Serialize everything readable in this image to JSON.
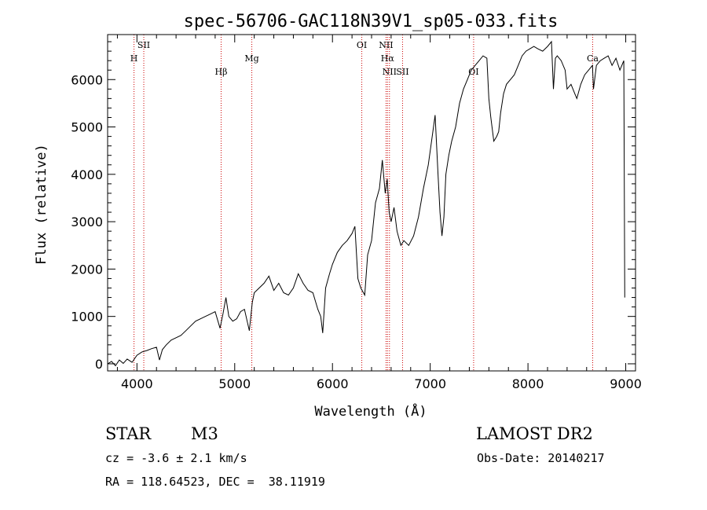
{
  "chart_data": {
    "type": "line",
    "title": "spec-56706-GAC118N39V1_sp05-033.fits",
    "xlabel": "Wavelength (Å)",
    "ylabel": "Flux (relative)",
    "xlim": [
      3700,
      9100
    ],
    "ylim": [
      -150,
      6950
    ],
    "xticks": [
      4000,
      5000,
      6000,
      7000,
      8000,
      9000
    ],
    "yticks": [
      0,
      1000,
      2000,
      3000,
      4000,
      5000,
      6000
    ],
    "grid": false,
    "line_color": "#000000",
    "marker_color": "#cc0000",
    "spectral_lines": [
      {
        "label": "H",
        "wavelength": 3970,
        "row": 2
      },
      {
        "label": "SII",
        "wavelength": 4070,
        "row": 1
      },
      {
        "label": "Hβ",
        "wavelength": 4861,
        "row": 3
      },
      {
        "label": "Mg",
        "wavelength": 5175,
        "row": 2
      },
      {
        "label": "OI",
        "wavelength": 6300,
        "row": 1
      },
      {
        "label": "NII",
        "wavelength": 6548,
        "row": 1
      },
      {
        "label": "Hα",
        "wavelength": 6563,
        "row": 2
      },
      {
        "label": "NII",
        "wavelength": 6583,
        "row": 3
      },
      {
        "label": "SII",
        "wavelength": 6717,
        "row": 3
      },
      {
        "label": "OI",
        "wavelength": 7444,
        "row": 3
      },
      {
        "label": "Ca",
        "wavelength": 8662,
        "row": 2
      }
    ],
    "series": [
      {
        "x": [
          3700,
          3740,
          3780,
          3820,
          3860,
          3900,
          3950,
          4000,
          4050,
          4100,
          4150,
          4200,
          4230,
          4260,
          4300,
          4350,
          4400,
          4450,
          4500,
          4550,
          4600,
          4650,
          4700,
          4750,
          4800,
          4850,
          4880,
          4910,
          4940,
          4980,
          5020,
          5060,
          5100,
          5150,
          5180,
          5200,
          5250,
          5300,
          5350,
          5400,
          5450,
          5500,
          5550,
          5600,
          5650,
          5700,
          5750,
          5800,
          5850,
          5880,
          5900,
          5930,
          5970,
          6000,
          6050,
          6100,
          6150,
          6200,
          6230,
          6260,
          6290,
          6330,
          6360,
          6400,
          6440,
          6480,
          6510,
          6540,
          6560,
          6580,
          6600,
          6630,
          6660,
          6700,
          6730,
          6780,
          6830,
          6880,
          6930,
          6980,
          7020,
          7050,
          7080,
          7100,
          7120,
          7140,
          7160,
          7190,
          7220,
          7260,
          7300,
          7340,
          7380,
          7420,
          7460,
          7500,
          7540,
          7580,
          7600,
          7620,
          7650,
          7680,
          7700,
          7720,
          7750,
          7780,
          7820,
          7860,
          7900,
          7940,
          7980,
          8020,
          8060,
          8100,
          8150,
          8200,
          8240,
          8260,
          8280,
          8300,
          8340,
          8380,
          8400,
          8440,
          8480,
          8500,
          8540,
          8580,
          8620,
          8660,
          8670,
          8700,
          8740,
          8780,
          8820,
          8860,
          8900,
          8940,
          8980,
          8990
        ],
        "y": [
          0,
          50,
          -40,
          80,
          10,
          100,
          30,
          180,
          250,
          280,
          320,
          350,
          80,
          300,
          400,
          500,
          550,
          600,
          700,
          800,
          900,
          950,
          1000,
          1050,
          1100,
          750,
          1050,
          1400,
          1000,
          900,
          950,
          1100,
          1150,
          700,
          1300,
          1500,
          1600,
          1700,
          1850,
          1550,
          1700,
          1500,
          1450,
          1600,
          1900,
          1700,
          1550,
          1500,
          1150,
          1000,
          650,
          1600,
          1900,
          2100,
          2350,
          2500,
          2600,
          2750,
          2900,
          1800,
          1600,
          1450,
          2300,
          2600,
          3400,
          3700,
          4300,
          3600,
          3900,
          3200,
          3000,
          3300,
          2800,
          2500,
          2600,
          2500,
          2700,
          3100,
          3700,
          4200,
          4800,
          5250,
          4000,
          3200,
          2700,
          3100,
          4000,
          4400,
          4700,
          5000,
          5500,
          5800,
          6000,
          6200,
          6300,
          6400,
          6500,
          6450,
          5600,
          5200,
          4700,
          4800,
          4900,
          5300,
          5700,
          5900,
          6000,
          6100,
          6300,
          6500,
          6600,
          6650,
          6700,
          6650,
          6600,
          6700,
          6800,
          5800,
          6450,
          6500,
          6400,
          6200,
          5800,
          5900,
          5700,
          5600,
          5900,
          6100,
          6200,
          6300,
          5800,
          6300,
          6400,
          6450,
          6500,
          6300,
          6450,
          6200,
          6400,
          1400
        ]
      }
    ],
    "info": {
      "class": "STAR",
      "subclass": "M3",
      "survey": "LAMOST DR2",
      "cz": "cz = -3.6 ± 2.1 km/s",
      "obs_date": "Obs-Date: 20140217",
      "coords": "RA = 118.64523, DEC =  38.11919"
    }
  }
}
